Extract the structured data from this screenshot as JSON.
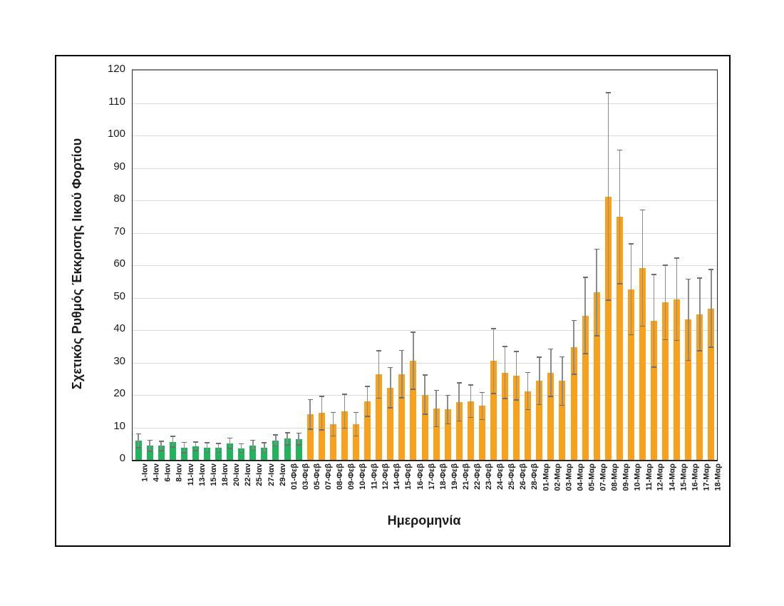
{
  "figure": {
    "background": "#FFFFFF",
    "frame_border_color": "#000000"
  },
  "chart_data": {
    "type": "bar",
    "title": "",
    "xlabel": "Ημερομηνία",
    "ylabel": "Σχετικός Ρυθμός Έκκρισης Ιικού Φορτίου",
    "ylim": [
      0,
      120
    ],
    "yticks": [
      0,
      10,
      20,
      30,
      40,
      50,
      60,
      70,
      80,
      90,
      100,
      110,
      120
    ],
    "grid": true,
    "legend": "none",
    "error_bars": "symmetric",
    "green_bar_count": 15,
    "categories": [
      "1-Ιαν",
      "4-Ιαν",
      "6-Ιαν",
      "8-Ιαν",
      "11-Ιαν",
      "13-Ιαν",
      "15-Ιαν",
      "18-Ιαν",
      "20-Ιαν",
      "22-Ιαν",
      "25-Ιαν",
      "27-Ιαν",
      "29-Ιαν",
      "01-Φεβ",
      "03-Φεβ",
      "05-Φεβ",
      "07-Φεβ",
      "08-Φεβ",
      "09-Φεβ",
      "10-Φεβ",
      "11-Φεβ",
      "12-Φεβ",
      "14-Φεβ",
      "15-Φεβ",
      "16-Φεβ",
      "17-Φεβ",
      "18-Φεβ",
      "19-Φεβ",
      "21-Φεβ",
      "22-Φεβ",
      "23-Φεβ",
      "24-Φεβ",
      "25-Φεβ",
      "26-Φεβ",
      "28-Φεβ",
      "01-Μαρ",
      "02-Μαρ",
      "03-Μαρ",
      "04-Μαρ",
      "05-Μαρ",
      "07-Μαρ",
      "08-Μαρ",
      "09-Μαρ",
      "10-Μαρ",
      "11-Μαρ",
      "12-Μαρ",
      "14-Μαρ",
      "15-Μαρ",
      "16-Μαρ",
      "17-Μαρ",
      "18-Μαρ"
    ],
    "values": [
      5.9,
      4.3,
      4.3,
      5.6,
      3.8,
      4.2,
      3.8,
      3.7,
      5.1,
      3.6,
      4.5,
      3.8,
      6.0,
      6.5,
      6.4,
      14.0,
      14.4,
      11.0,
      15.0,
      11.0,
      18.0,
      26.3,
      22.3,
      26.4,
      30.5,
      20.1,
      15.8,
      15.5,
      17.9,
      18.1,
      16.6,
      30.5,
      26.9,
      25.9,
      21.2,
      24.3,
      26.9,
      24.3,
      34.7,
      44.5,
      51.6,
      81.2,
      74.9,
      52.6,
      59.1,
      42.9,
      48.5,
      49.5,
      43.2,
      44.8,
      46.7
    ],
    "errors": [
      2.1,
      1.7,
      1.4,
      1.7,
      1.6,
      1.3,
      1.5,
      1.4,
      1.6,
      1.3,
      1.5,
      1.5,
      1.7,
      1.9,
      1.8,
      4.6,
      5.2,
      3.6,
      5.2,
      3.6,
      4.6,
      7.3,
      6.2,
      7.3,
      8.8,
      6.0,
      5.6,
      4.4,
      5.9,
      5.0,
      4.2,
      10.0,
      8.0,
      7.5,
      5.7,
      7.3,
      7.3,
      7.5,
      8.3,
      11.8,
      13.3,
      32.0,
      20.6,
      14.0,
      17.9,
      14.3,
      11.5,
      12.7,
      12.5,
      11.2,
      12.0
    ],
    "colors": {
      "green_bar": "#22B45A",
      "orange_bar": "#F9A11B",
      "error_bar": "#8C8C8C",
      "error_cap": "#6E6E6E",
      "gridline": "#DADADA",
      "axis_text": "#1A1A1A"
    }
  }
}
